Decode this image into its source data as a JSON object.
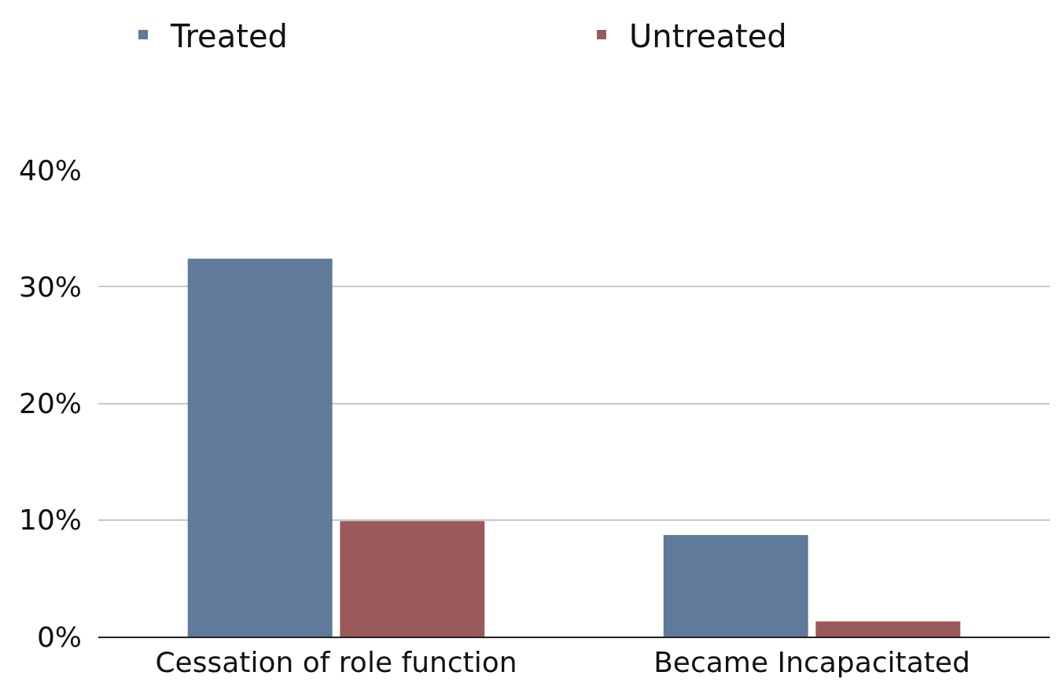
{
  "chart_data": {
    "type": "bar",
    "categories": [
      "Cessation of role function",
      "Became Incapacitated"
    ],
    "series": [
      {
        "name": "Treated",
        "color": "#5f7a9a",
        "values": [
          32.4,
          8.7
        ]
      },
      {
        "name": "Untreated",
        "color": "#9b5a5a",
        "values": [
          9.9,
          1.3
        ]
      }
    ],
    "ylim": [
      0,
      40
    ],
    "yticks": [
      {
        "value": 0,
        "label": "0%"
      },
      {
        "value": 10,
        "label": "10%"
      },
      {
        "value": 20,
        "label": "20%"
      },
      {
        "value": 30,
        "label": "30%"
      },
      {
        "value": 40,
        "label": "40%"
      }
    ],
    "grid": "y",
    "legend": "top"
  }
}
